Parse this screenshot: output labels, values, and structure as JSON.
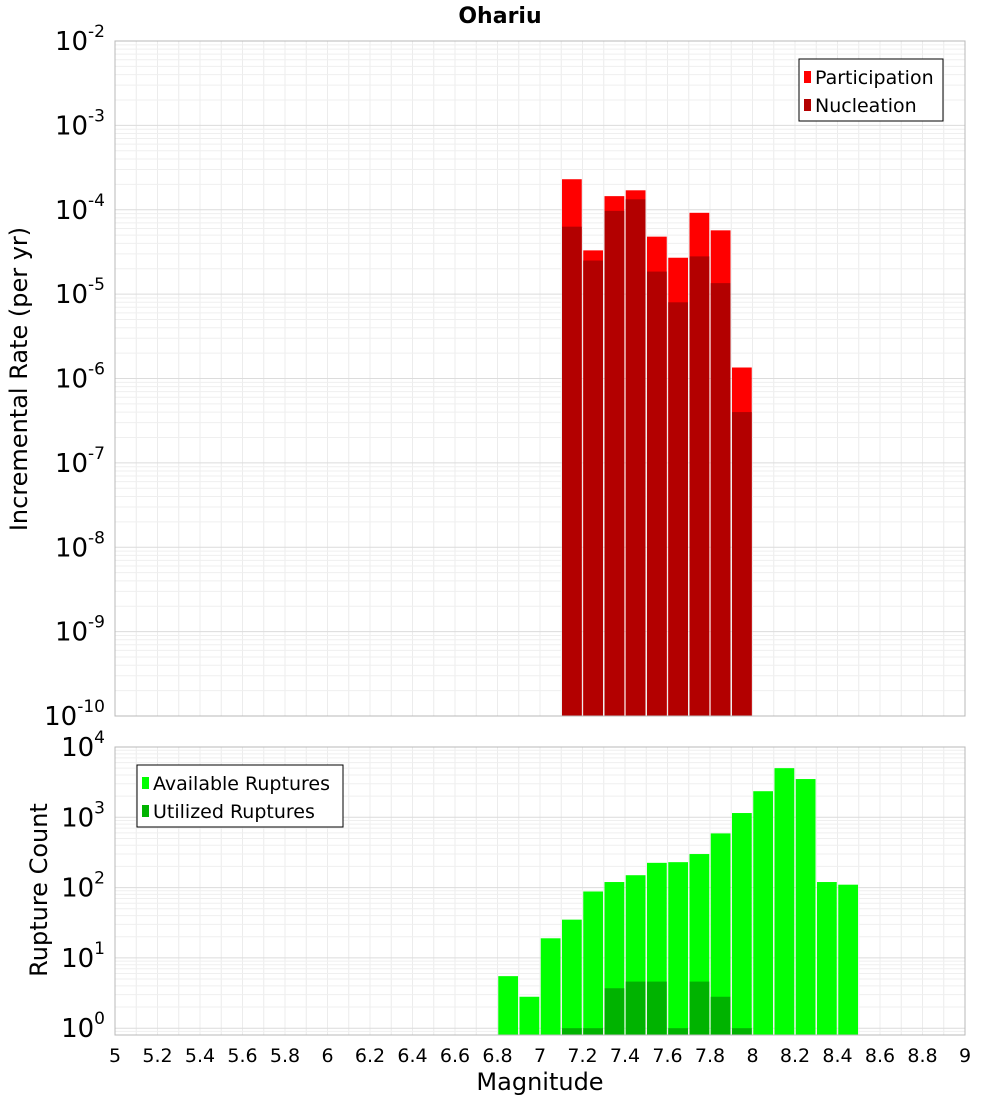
{
  "chart_data": [
    {
      "type": "bar",
      "title": "Ohariu",
      "ylabel": "Incremental Rate (per yr)",
      "xlabel": "",
      "xlim": [
        5,
        9
      ],
      "ylim": [
        1e-10,
        0.01
      ],
      "yscale": "log",
      "grid": true,
      "legend_position": "top-right",
      "bin_width": 0.1,
      "x": [
        7.15,
        7.25,
        7.35,
        7.45,
        7.55,
        7.65,
        7.75,
        7.85,
        7.95
      ],
      "series": [
        {
          "name": "Participation",
          "color": "#ff0000",
          "values": [
            0.00023,
            3.3e-05,
            0.000145,
            0.00017,
            4.8e-05,
            2.7e-05,
            9.2e-05,
            5.7e-05,
            1.35e-06
          ]
        },
        {
          "name": "Nucleation",
          "color": "#b30000",
          "values": [
            6.3e-05,
            2.5e-05,
            9.7e-05,
            0.000133,
            1.85e-05,
            8e-06,
            2.8e-05,
            1.35e-05,
            4e-07
          ]
        }
      ],
      "y_ticks": [
        {
          "base": "10",
          "exp": "-2"
        },
        {
          "base": "10",
          "exp": "-3"
        },
        {
          "base": "10",
          "exp": "-4"
        },
        {
          "base": "10",
          "exp": "-5"
        },
        {
          "base": "10",
          "exp": "-6"
        },
        {
          "base": "10",
          "exp": "-7"
        },
        {
          "base": "10",
          "exp": "-8"
        },
        {
          "base": "10",
          "exp": "-9"
        },
        {
          "base": "10",
          "exp": "-10"
        }
      ]
    },
    {
      "type": "bar",
      "title": "",
      "ylabel": "Rupture Count",
      "xlabel": "Magnitude",
      "xlim": [
        5,
        9
      ],
      "ylim": [
        0.8,
        10000
      ],
      "yscale": "log",
      "grid": true,
      "legend_position": "top-left",
      "bin_width": 0.1,
      "x": [
        6.85,
        6.95,
        7.05,
        7.15,
        7.25,
        7.35,
        7.45,
        7.55,
        7.65,
        7.75,
        7.85,
        7.95,
        8.05,
        8.15,
        8.25,
        8.35,
        8.45
      ],
      "series": [
        {
          "name": "Available Ruptures",
          "color": "#00ff00",
          "values": [
            5.5,
            2.8,
            19,
            35,
            88,
            120,
            150,
            225,
            230,
            300,
            590,
            1150,
            2350,
            5000,
            3500,
            120,
            110
          ]
        },
        {
          "name": "Utilized Ruptures",
          "color": "#00b300",
          "values": [
            0,
            0,
            0,
            1,
            1,
            3.7,
            4.6,
            4.6,
            1,
            4.6,
            2.8,
            1,
            0,
            0,
            0,
            0,
            0
          ]
        }
      ],
      "y_ticks": [
        {
          "base": "10",
          "exp": "4"
        },
        {
          "base": "10",
          "exp": "3"
        },
        {
          "base": "10",
          "exp": "2"
        },
        {
          "base": "10",
          "exp": "1"
        },
        {
          "base": "10",
          "exp": "0"
        }
      ],
      "x_tick_labels": [
        "5",
        "5.2",
        "5.4",
        "5.6",
        "5.8",
        "6",
        "6.2",
        "6.4",
        "6.6",
        "6.8",
        "7",
        "7.2",
        "7.4",
        "7.6",
        "7.8",
        "8",
        "8.2",
        "8.4",
        "8.6",
        "8.8",
        "9"
      ]
    }
  ]
}
